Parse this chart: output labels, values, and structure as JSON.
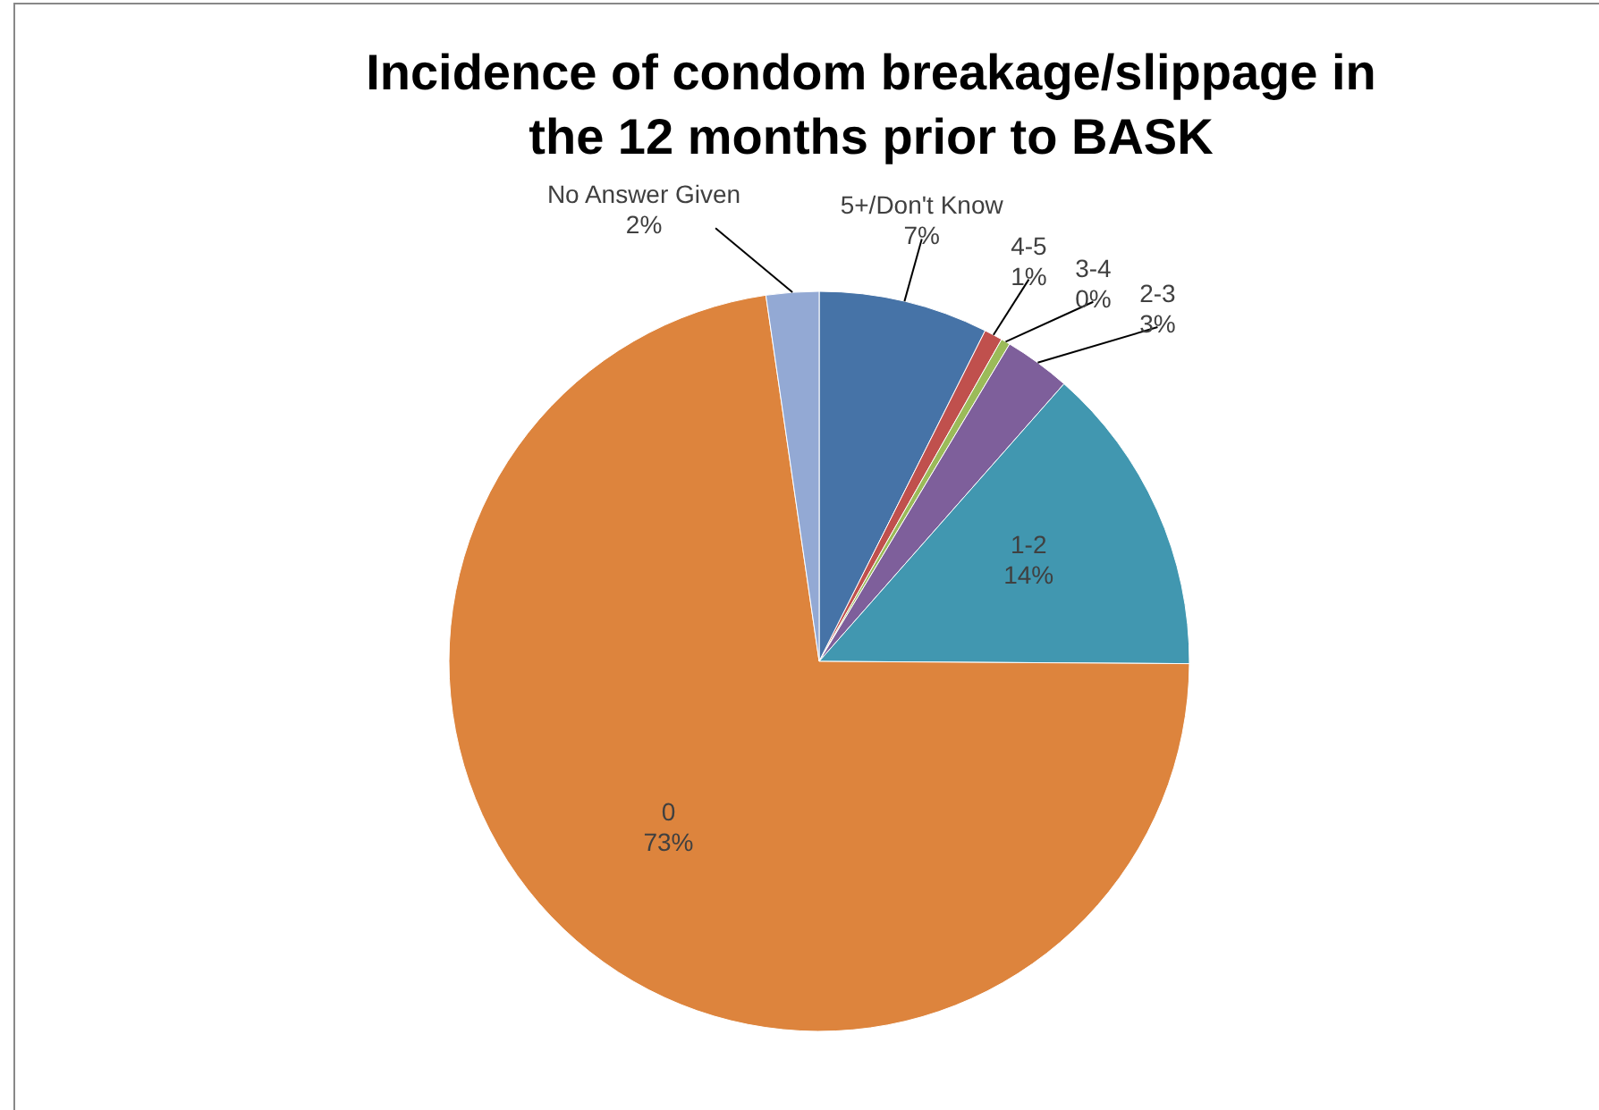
{
  "chart_data": {
    "type": "pie",
    "title": "Incidence of condom breakage/slippage in the 12 months prior to BASK",
    "categories": [
      "5+/Don't Know",
      "4-5",
      "3-4",
      "2-3",
      "1-2",
      "0",
      "No Answer Given"
    ],
    "values": [
      7.4,
      0.8,
      0.4,
      2.9,
      13.6,
      72.6,
      2.3
    ],
    "value_labels": [
      "7%",
      "1%",
      "0%",
      "3%",
      "14%",
      "73%",
      "2%"
    ],
    "colors": [
      "#4673a7",
      "#c0504d",
      "#9bbb59",
      "#7e5f9b",
      "#4197b0",
      "#dd843d",
      "#93a9d4"
    ],
    "legend": false
  }
}
